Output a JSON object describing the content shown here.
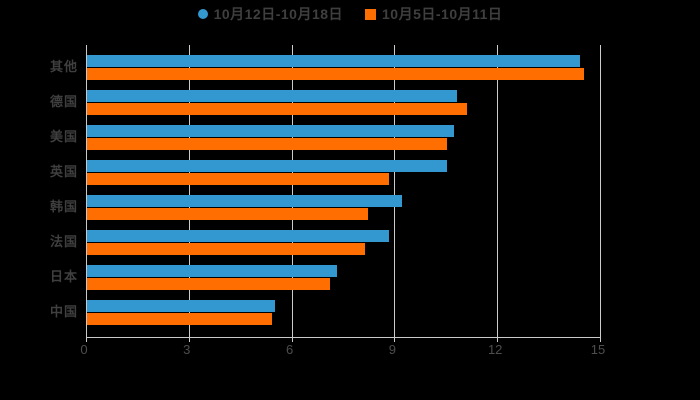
{
  "chart": {
    "background": "#000000",
    "grid_color": "#cccccc",
    "axis_color": "#c9c9c9",
    "label_color": "#3f3f3f",
    "tick_label_color": "#4d4d4d"
  },
  "chart_data": {
    "type": "bar",
    "orientation": "horizontal",
    "title": "",
    "xlabel": "",
    "ylabel": "",
    "grid": true,
    "legend_position": "top-center",
    "xlim": [
      0,
      15
    ],
    "x_ticks": [
      0,
      3,
      6,
      9,
      12,
      15
    ],
    "categories": [
      "其他",
      "德国",
      "美国",
      "英国",
      "韩国",
      "法国",
      "日本",
      "中国"
    ],
    "series": [
      {
        "name": "10月12日-10月18日",
        "marker": "circle",
        "color": "#3498d0",
        "values": [
          14.4,
          10.8,
          10.7,
          10.5,
          9.2,
          8.8,
          7.3,
          5.5
        ]
      },
      {
        "name": "10月5日-10月11日",
        "marker": "square",
        "color": "#ff6e00",
        "values": [
          14.5,
          11.1,
          10.5,
          8.8,
          8.2,
          8.1,
          7.1,
          5.4
        ]
      }
    ]
  }
}
